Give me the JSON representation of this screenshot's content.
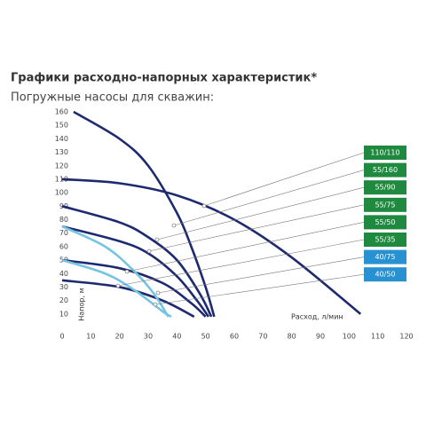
{
  "chart_data": {
    "type": "line",
    "title": "Графики расходно-напорных характеристик*",
    "subtitle": "Погружные насосы для скважин:",
    "x_label": "Расход, л/мин",
    "y_label": "Напор, м",
    "xlim": [
      0,
      120
    ],
    "ylim": [
      0,
      160
    ],
    "xticks": [
      0,
      10,
      20,
      30,
      40,
      50,
      60,
      70,
      80,
      90,
      100,
      110,
      120
    ],
    "yticks": [
      10,
      20,
      30,
      40,
      50,
      60,
      70,
      80,
      90,
      100,
      110,
      120,
      130,
      140,
      150,
      160
    ],
    "series": [
      {
        "name": "110/110",
        "color": "#1e2a6f",
        "legend_color": "#1f8a3f",
        "x": [
          0,
          20,
          40,
          60,
          80,
          104
        ],
        "values": [
          110,
          107,
          98,
          80,
          52,
          10
        ]
      },
      {
        "name": "55/160",
        "color": "#1e2a6f",
        "legend_color": "#1f8a3f",
        "x": [
          4,
          20,
          30,
          40,
          45,
          50,
          53
        ],
        "values": [
          160,
          140,
          120,
          85,
          60,
          30,
          8
        ]
      },
      {
        "name": "55/90",
        "color": "#1e2a6f",
        "legend_color": "#1f8a3f",
        "x": [
          0,
          20,
          30,
          40,
          48,
          52
        ],
        "values": [
          90,
          78,
          67,
          50,
          25,
          8
        ]
      },
      {
        "name": "55/75",
        "color": "#1e2a6f",
        "legend_color": "#1f8a3f",
        "x": [
          0,
          20,
          30,
          40,
          47,
          51
        ],
        "values": [
          75,
          64,
          55,
          38,
          20,
          8
        ]
      },
      {
        "name": "55/50",
        "color": "#1e2a6f",
        "legend_color": "#1f8a3f",
        "x": [
          0,
          20,
          35,
          45,
          50
        ],
        "values": [
          50,
          44,
          33,
          18,
          8
        ]
      },
      {
        "name": "55/35",
        "color": "#1e2a6f",
        "legend_color": "#1f8a3f",
        "x": [
          0,
          20,
          35,
          46
        ],
        "values": [
          35,
          30,
          20,
          8
        ]
      },
      {
        "name": "40/75",
        "color": "#74c4e2",
        "legend_color": "#2791d2",
        "x": [
          0,
          15,
          25,
          32,
          37
        ],
        "values": [
          75,
          60,
          42,
          25,
          8
        ]
      },
      {
        "name": "40/50",
        "color": "#74c4e2",
        "legend_color": "#2791d2",
        "x": [
          0,
          15,
          25,
          35,
          38
        ],
        "values": [
          50,
          40,
          28,
          12,
          8
        ]
      }
    ]
  }
}
